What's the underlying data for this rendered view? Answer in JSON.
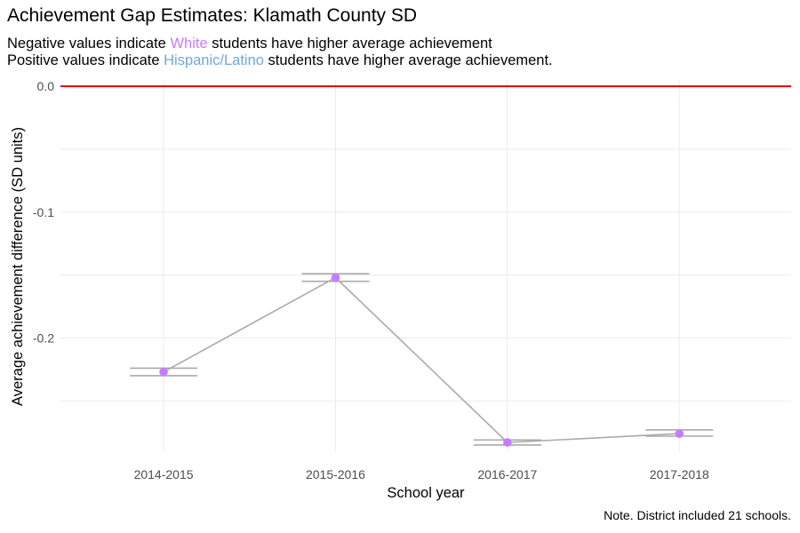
{
  "title": "Achievement Gap Estimates: Klamath County SD",
  "subtitle": {
    "line1_prefix": "Negative values indicate ",
    "line1_highlight": "White",
    "line1_suffix": " students have higher average achievement",
    "line2_prefix": "Positive values indicate ",
    "line2_highlight": "Hispanic/Latino",
    "line2_suffix": " students have higher average achievement.",
    "white_color": "#c77cff",
    "hispanic_color": "#6fa8dc"
  },
  "note": "Note. District included 21 schools.",
  "chart_data": {
    "type": "line",
    "xlabel": "School year",
    "ylabel": "Average achievement difference (SD units)",
    "categories": [
      "2014-2015",
      "2015-2016",
      "2016-2017",
      "2017-2018"
    ],
    "values": [
      -0.227,
      -0.152,
      -0.283,
      -0.276
    ],
    "error_lower": [
      -0.23,
      -0.155,
      -0.285,
      -0.278
    ],
    "error_upper": [
      -0.224,
      -0.149,
      -0.281,
      -0.273
    ],
    "ylim": [
      -0.29,
      0.005
    ],
    "yticks": [
      0.0,
      -0.1,
      -0.2
    ],
    "ytick_labels": [
      "0.0",
      "-0.1",
      "-0.2"
    ],
    "reference_line": 0.0,
    "grid": true,
    "colors": {
      "point": "#c77cff",
      "line": "#aaaaaa",
      "errorbar": "#aaaaaa",
      "reference": "#e00000",
      "grid": "#ebebeb"
    }
  }
}
